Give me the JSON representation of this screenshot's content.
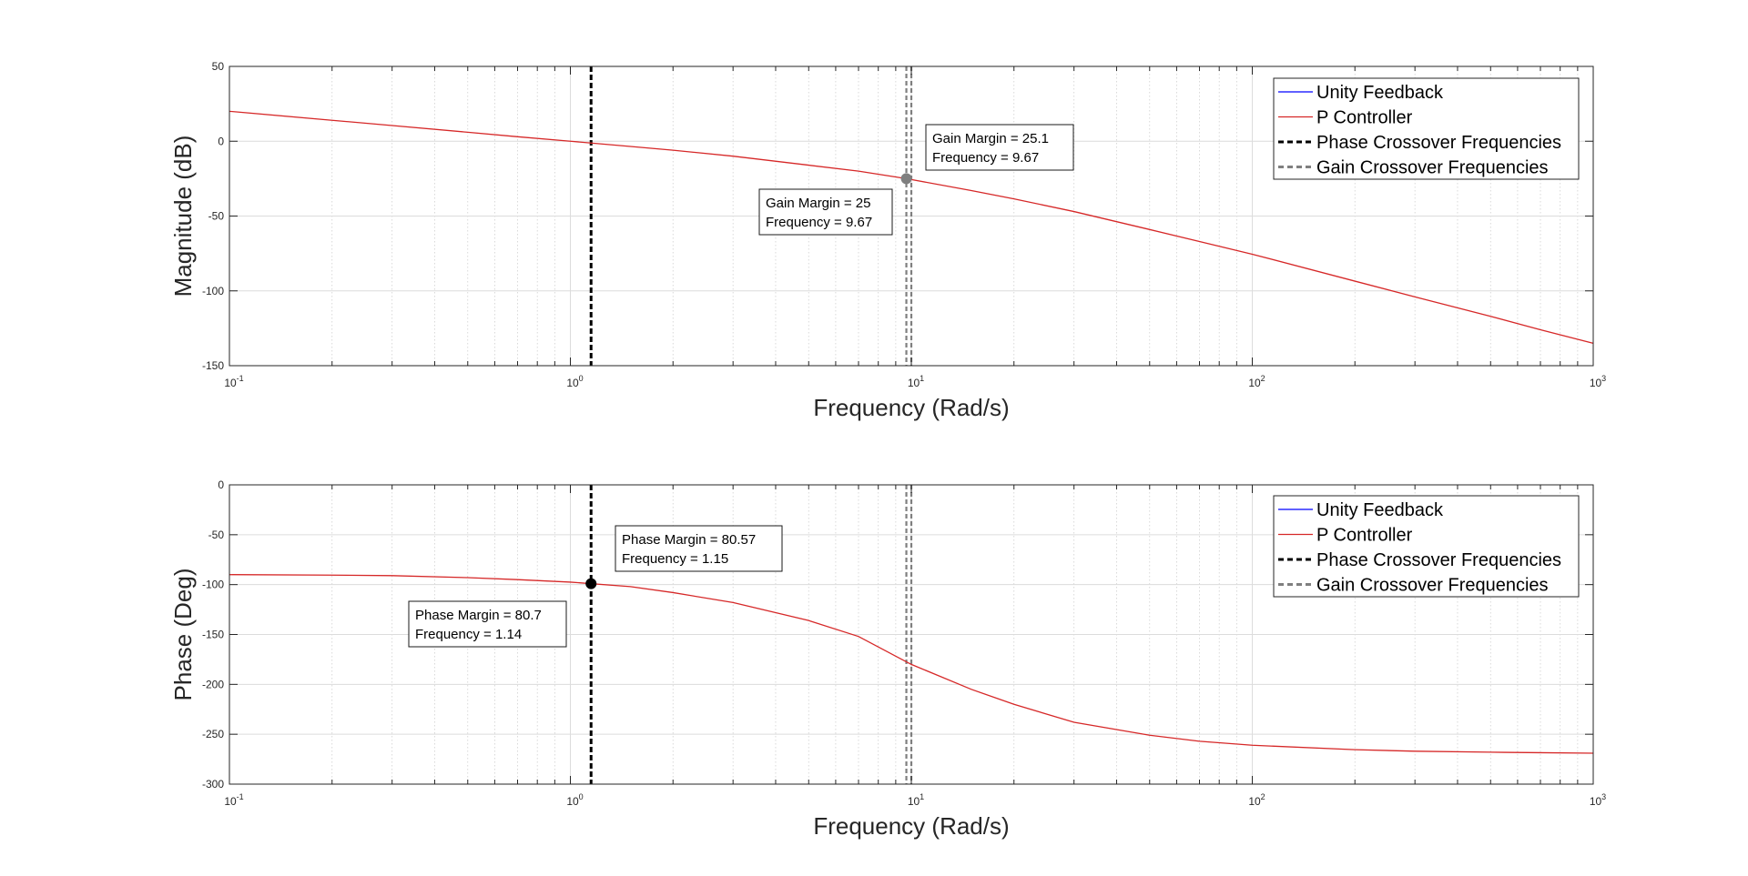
{
  "colors": {
    "unity_feedback": "#0000ff",
    "p_controller": "#d62828",
    "phase_crossover": "#000000",
    "gain_crossover": "#7f7f7f",
    "gain_marker": "#7f7f7f",
    "phase_marker": "#000000"
  },
  "chart_data": [
    {
      "type": "line",
      "x_scale": "log",
      "xlabel": "Frequency (Rad/s)",
      "ylabel": "Magnitude (dB)",
      "xlim": [
        0.1,
        1000
      ],
      "ylim": [
        -150,
        50
      ],
      "x_ticks": [
        0.1,
        1,
        10,
        100,
        1000
      ],
      "x_tick_labels": [
        {
          "base": "10",
          "exp": "-1"
        },
        {
          "base": "10",
          "exp": "0"
        },
        {
          "base": "10",
          "exp": "1"
        },
        {
          "base": "10",
          "exp": "2"
        },
        {
          "base": "10",
          "exp": "3"
        }
      ],
      "y_ticks": [
        50,
        0,
        -50,
        -100,
        -150
      ],
      "y_tick_labels": [
        "50",
        "0",
        "-50",
        "-100",
        "-150"
      ],
      "grid": true,
      "legend_position": "top-right",
      "legend": [
        "Unity Feedback",
        "P Controller",
        "Phase Crossover Frequencies",
        "Gain Crossover Frequencies"
      ],
      "series": [
        {
          "name": "P Controller",
          "x": [
            0.1,
            0.2,
            0.3,
            0.5,
            0.7,
            1,
            1.5,
            2,
            3,
            5,
            7,
            9.67,
            15,
            20,
            30,
            50,
            70,
            100,
            200,
            300,
            500,
            700,
            1000
          ],
          "y": [
            20,
            14,
            10.5,
            6,
            3,
            0,
            -3.5,
            -6,
            -10,
            -16,
            -20,
            -25,
            -33,
            -38.5,
            -47,
            -59,
            -67,
            -75.5,
            -93.5,
            -104,
            -117,
            -126,
            -135
          ]
        }
      ],
      "vertical_lines": [
        {
          "name": "Phase Crossover Frequencies",
          "x": 1.15
        },
        {
          "name": "Gain Crossover Frequencies",
          "x": 9.67
        },
        {
          "name": "Gain Crossover Frequencies",
          "x": 10
        }
      ],
      "markers": [
        {
          "x": 9.67,
          "y": -25
        }
      ],
      "annotations": [
        {
          "lines": [
            "Gain Margin = 25.1",
            "Frequency = 9.67"
          ]
        },
        {
          "lines": [
            "Gain Margin = 25",
            "Frequency = 9.67"
          ]
        }
      ]
    },
    {
      "type": "line",
      "x_scale": "log",
      "xlabel": "Frequency (Rad/s)",
      "ylabel": "Phase (Deg)",
      "xlim": [
        0.1,
        1000
      ],
      "ylim": [
        -300,
        0
      ],
      "x_ticks": [
        0.1,
        1,
        10,
        100,
        1000
      ],
      "x_tick_labels": [
        {
          "base": "10",
          "exp": "-1"
        },
        {
          "base": "10",
          "exp": "0"
        },
        {
          "base": "10",
          "exp": "1"
        },
        {
          "base": "10",
          "exp": "2"
        },
        {
          "base": "10",
          "exp": "3"
        }
      ],
      "y_ticks": [
        0,
        -50,
        -100,
        -150,
        -200,
        -250,
        -300
      ],
      "y_tick_labels": [
        "0",
        "-50",
        "-100",
        "-150",
        "-200",
        "-250",
        "-300"
      ],
      "grid": true,
      "legend_position": "top-right",
      "legend": [
        "Unity Feedback",
        "P Controller",
        "Phase Crossover Frequencies",
        "Gain Crossover Frequencies"
      ],
      "series": [
        {
          "name": "P Controller",
          "x": [
            0.1,
            0.2,
            0.3,
            0.5,
            0.7,
            1,
            1.5,
            2,
            3,
            5,
            7,
            10,
            15,
            20,
            30,
            50,
            70,
            100,
            200,
            300,
            500,
            700,
            1000
          ],
          "y": [
            -90,
            -90.5,
            -91,
            -93,
            -95,
            -97.5,
            -102,
            -108,
            -118,
            -136,
            -152,
            -180,
            -205,
            -220,
            -238,
            -251,
            -257,
            -261,
            -265.5,
            -267,
            -268,
            -268.5,
            -269
          ]
        }
      ],
      "vertical_lines": [
        {
          "name": "Phase Crossover Frequencies",
          "x": 1.15
        },
        {
          "name": "Gain Crossover Frequencies",
          "x": 9.67
        },
        {
          "name": "Gain Crossover Frequencies",
          "x": 10
        }
      ],
      "markers": [
        {
          "x": 1.15,
          "y": -99
        }
      ],
      "annotations": [
        {
          "lines": [
            "Phase Margin = 80.57",
            "Frequency = 1.15"
          ]
        },
        {
          "lines": [
            "Phase Margin = 80.7",
            "Frequency = 1.14"
          ]
        }
      ]
    }
  ]
}
